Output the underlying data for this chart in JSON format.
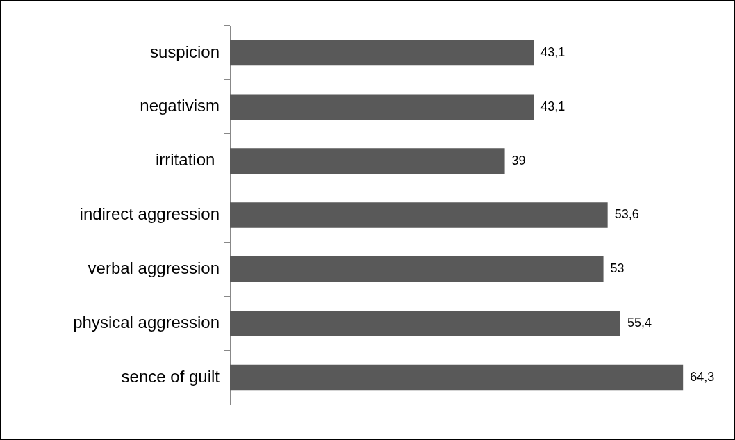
{
  "chart_data": {
    "type": "bar",
    "orientation": "horizontal",
    "categories": [
      "suspicion",
      "negativism",
      "irritation ",
      "indirect aggression",
      "verbal aggression",
      "physical aggression",
      "sence of guilt"
    ],
    "values": [
      43.1,
      43.1,
      39,
      53.6,
      53,
      55.4,
      64.3
    ],
    "value_labels": [
      "43,1",
      "43,1",
      "39",
      "53,6",
      "53",
      "55,4",
      "64,3"
    ],
    "color": "#595959",
    "tick_labels": "y",
    "legend": false
  }
}
